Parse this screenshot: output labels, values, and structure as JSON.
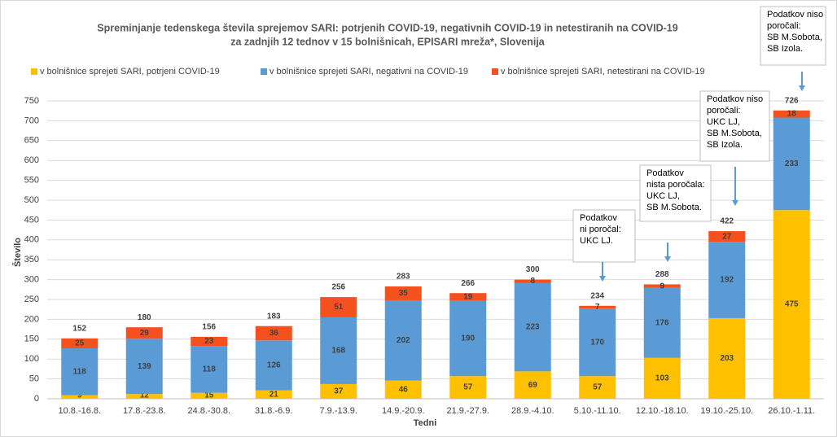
{
  "chart_data": {
    "type": "stacked_bar",
    "title": [
      "Spreminjanje tedenskega števila sprejemov SARI: potrjenih COVID-19, negativnih COVID-19 in netestiranih na COVID-19",
      "za zadnjih 12 tednov v 15 bolnišnicah, EPISARI mreža*, Slovenija"
    ],
    "x_label": "Tedni",
    "y_label": "Število",
    "categories": [
      "10.8.-16.8.",
      "17.8.-23.8.",
      "24.8.-30.8.",
      "31.8.-6.9.",
      "7.9.-13.9.",
      "14.9.-20.9.",
      "21.9.-27.9.",
      "28.9.-4.10.",
      "5.10.-11.10.",
      "12.10.-18.10.",
      "19.10.-25.10.",
      "26.10.-1.11."
    ],
    "series": [
      {
        "name": "v bolnišnice sprejeti SARI, potrjeni COVID-19",
        "color": "#ffc000",
        "values": [
          9,
          12,
          15,
          21,
          37,
          46,
          57,
          69,
          57,
          103,
          203,
          475
        ]
      },
      {
        "name": "v bolnišnice sprejeti SARI, negativni na COVID-19",
        "color": "#5b9bd5",
        "values": [
          118,
          139,
          118,
          126,
          168,
          202,
          190,
          223,
          170,
          176,
          192,
          233
        ]
      },
      {
        "name": "v bolnišnice sprejeti SARI, netestirani na COVID-19",
        "color": "#f4511e",
        "values": [
          25,
          29,
          23,
          36,
          51,
          35,
          19,
          8,
          7,
          9,
          27,
          18
        ]
      }
    ],
    "totals": [
      152,
      180,
      156,
      183,
      256,
      283,
      266,
      300,
      234,
      288,
      422,
      726
    ],
    "ylim": [
      0,
      750
    ],
    "yticks": [
      0,
      50,
      100,
      150,
      200,
      250,
      300,
      350,
      400,
      450,
      500,
      550,
      600,
      650,
      700,
      750
    ],
    "grid": true,
    "annotations": [
      {
        "lines": [
          "Podatkov",
          "ni poročal:",
          "UKC LJ."
        ]
      },
      {
        "lines": [
          "Podatkov",
          "nista poročala:",
          "UKC LJ,",
          "SB M.Sobota."
        ]
      },
      {
        "lines": [
          "Podatkov niso",
          "poročali:",
          "UKC LJ,",
          "SB M.Sobota,",
          "SB Izola."
        ]
      },
      {
        "lines": [
          "Podatkov niso",
          "poročali:",
          "SB M.Sobota,",
          "SB Izola."
        ]
      }
    ]
  }
}
